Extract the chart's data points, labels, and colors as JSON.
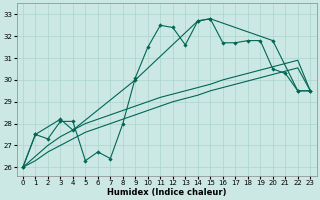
{
  "xlabel": "Humidex (Indice chaleur)",
  "background_color": "#cce8e4",
  "grid_color": "#aad4cc",
  "line_color": "#006655",
  "xlim": [
    -0.5,
    23.5
  ],
  "ylim": [
    25.6,
    33.5
  ],
  "yticks": [
    26,
    27,
    28,
    29,
    30,
    31,
    32,
    33
  ],
  "xticks": [
    0,
    1,
    2,
    3,
    4,
    5,
    6,
    7,
    8,
    9,
    10,
    11,
    12,
    13,
    14,
    15,
    16,
    17,
    18,
    19,
    20,
    21,
    22,
    23
  ],
  "line1_x": [
    0,
    1,
    2,
    3,
    4,
    5,
    6,
    7,
    8,
    9,
    10,
    11,
    12,
    13,
    14,
    15,
    16,
    17,
    18,
    19,
    20,
    21,
    22,
    23
  ],
  "line1_y": [
    26.0,
    27.5,
    27.3,
    28.1,
    28.1,
    26.3,
    26.7,
    26.4,
    28.0,
    30.1,
    31.5,
    32.5,
    32.4,
    31.6,
    32.7,
    32.8,
    31.7,
    31.7,
    31.8,
    31.8,
    30.5,
    30.3,
    29.5,
    29.5
  ],
  "line2_x": [
    0,
    1,
    3,
    4,
    9,
    14,
    15,
    20,
    22,
    23
  ],
  "line2_y": [
    26.0,
    27.5,
    28.2,
    27.7,
    30.0,
    32.7,
    32.8,
    31.8,
    29.5,
    29.5
  ],
  "line3_x": [
    0,
    1,
    2,
    3,
    4,
    5,
    6,
    7,
    8,
    9,
    10,
    11,
    12,
    13,
    14,
    15,
    16,
    17,
    18,
    19,
    20,
    21,
    22,
    23
  ],
  "line3_y": [
    26.0,
    26.5,
    27.0,
    27.4,
    27.7,
    28.0,
    28.2,
    28.4,
    28.6,
    28.8,
    29.0,
    29.2,
    29.35,
    29.5,
    29.65,
    29.8,
    30.0,
    30.15,
    30.3,
    30.45,
    30.6,
    30.75,
    30.9,
    29.5
  ],
  "line4_x": [
    0,
    1,
    2,
    3,
    4,
    5,
    6,
    7,
    8,
    9,
    10,
    11,
    12,
    13,
    14,
    15,
    16,
    17,
    18,
    19,
    20,
    21,
    22,
    23
  ],
  "line4_y": [
    26.0,
    26.3,
    26.7,
    27.0,
    27.3,
    27.6,
    27.8,
    28.0,
    28.2,
    28.4,
    28.6,
    28.8,
    29.0,
    29.15,
    29.3,
    29.5,
    29.65,
    29.8,
    29.95,
    30.1,
    30.25,
    30.4,
    30.55,
    29.5
  ]
}
